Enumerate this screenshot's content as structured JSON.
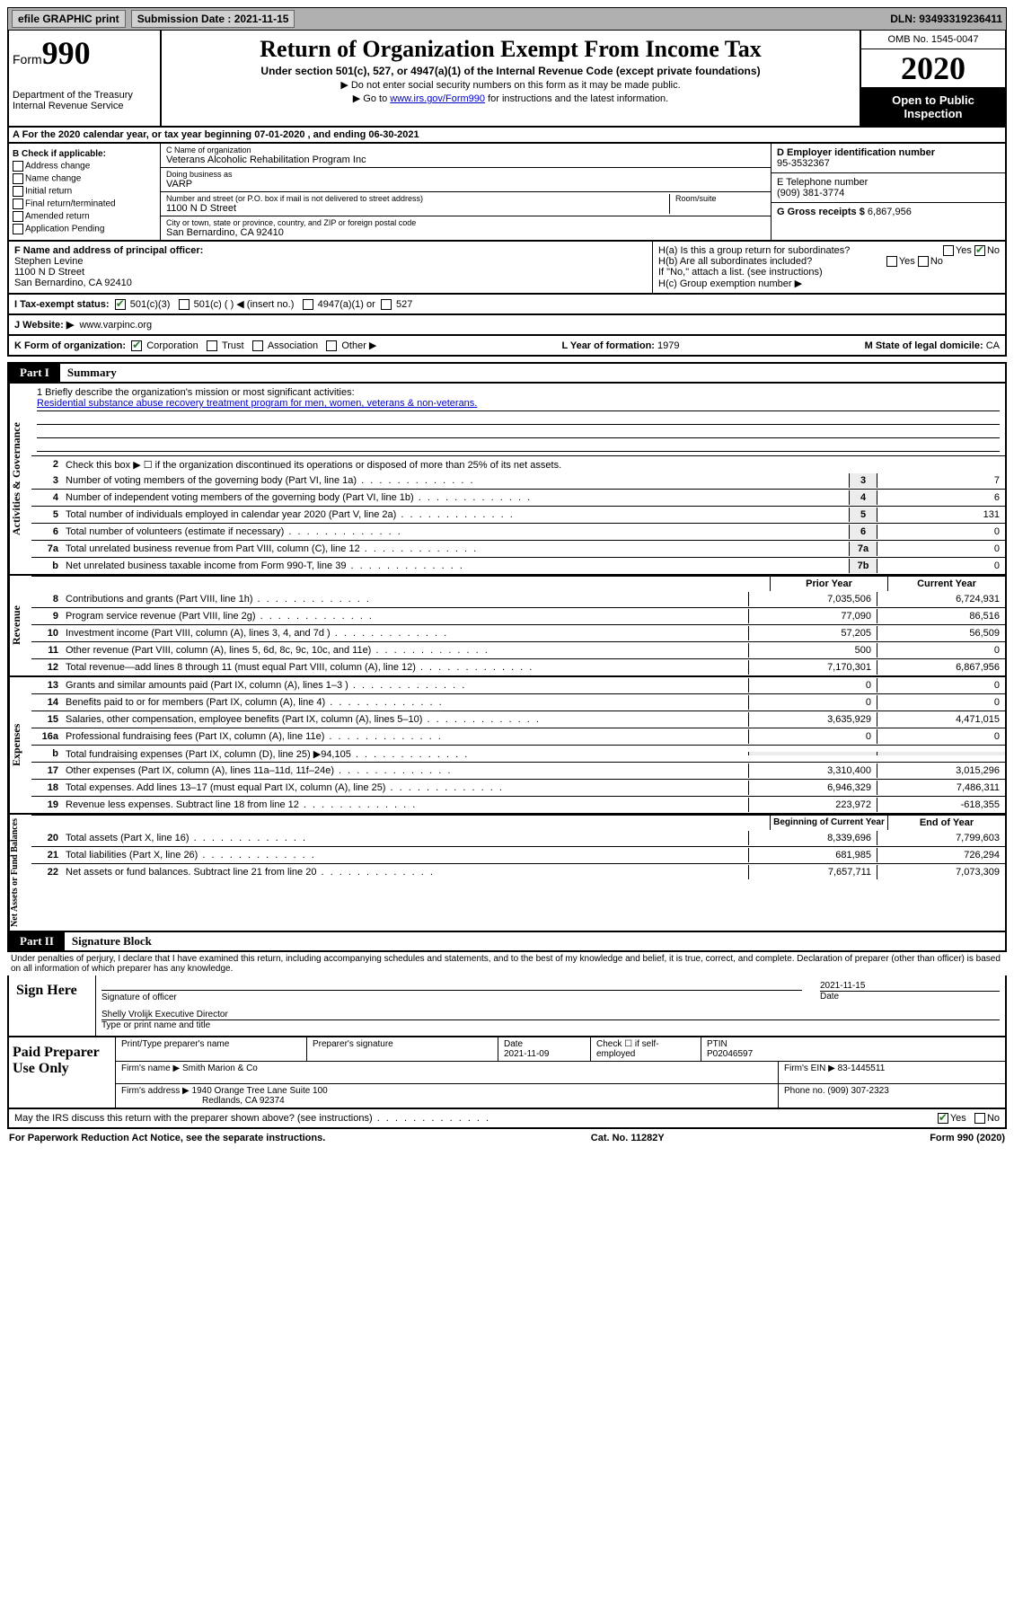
{
  "topbar": {
    "efile": "efile GRAPHIC print",
    "submission_label": "Submission Date :",
    "submission_date": "2021-11-15",
    "dln_label": "DLN:",
    "dln": "93493319236411"
  },
  "header": {
    "form_label": "Form",
    "form_number": "990",
    "dept": "Department of the Treasury\nInternal Revenue Service",
    "title": "Return of Organization Exempt From Income Tax",
    "subtitle": "Under section 501(c), 527, or 4947(a)(1) of the Internal Revenue Code (except private foundations)",
    "note1": "▶ Do not enter social security numbers on this form as it may be made public.",
    "note2_pre": "▶ Go to ",
    "note2_link": "www.irs.gov/Form990",
    "note2_post": " for instructions and the latest information.",
    "omb": "OMB No. 1545-0047",
    "year": "2020",
    "open": "Open to Public Inspection"
  },
  "rowA": "A For the 2020 calendar year, or tax year beginning 07-01-2020   , and ending 06-30-2021",
  "checklist": {
    "title": "B Check if applicable:",
    "items": [
      "Address change",
      "Name change",
      "Initial return",
      "Final return/terminated",
      "Amended return",
      "Application Pending"
    ]
  },
  "entity": {
    "name_label": "C Name of organization",
    "name": "Veterans Alcoholic Rehabilitation Program Inc",
    "dba_label": "Doing business as",
    "dba": "VARP",
    "street_label": "Number and street (or P.O. box if mail is not delivered to street address)",
    "room_label": "Room/suite",
    "street": "1100 N D Street",
    "city_label": "City or town, state or province, country, and ZIP or foreign postal code",
    "city": "San Bernardino, CA  92410",
    "ein_label": "D Employer identification number",
    "ein": "95-3532367",
    "phone_label": "E Telephone number",
    "phone": "(909) 381-3774",
    "gross_label": "G Gross receipts $",
    "gross": "6,867,956"
  },
  "officer": {
    "label": "F  Name and address of principal officer:",
    "name": "Stephen Levine",
    "addr1": "1100 N D Street",
    "addr2": "San Bernardino, CA  92410",
    "ha": "H(a)  Is this a group return for subordinates?",
    "hb": "H(b)  Are all subordinates included?",
    "hb_note": "If \"No,\" attach a list. (see instructions)",
    "hc": "H(c)  Group exemption number ▶",
    "yes": "Yes",
    "no": "No"
  },
  "tax": {
    "label": "I  Tax-exempt status:",
    "c501c3": "501(c)(3)",
    "c501c": "501(c) (  ) ◀ (insert no.)",
    "c4947": "4947(a)(1) or",
    "c527": "527"
  },
  "web": {
    "label": "J  Website: ▶",
    "url": "www.varpinc.org"
  },
  "korg": {
    "k_label": "K Form of organization:",
    "corp": "Corporation",
    "trust": "Trust",
    "assoc": "Association",
    "other": "Other ▶",
    "l_label": "L Year of formation:",
    "l_val": "1979",
    "m_label": "M State of legal domicile:",
    "m_val": "CA"
  },
  "part1": {
    "label": "Part I",
    "title": "Summary"
  },
  "mission": {
    "q": "1  Briefly describe the organization's mission or most significant activities:",
    "text": "Residential substance abuse recovery treatment program for men, women, veterans & non-veterans."
  },
  "summary": {
    "sec1_label": "Activities & Governance",
    "sec2_label": "Revenue",
    "sec3_label": "Expenses",
    "sec4_label": "Net Assets or Fund Balances",
    "line2": "Check this box ▶ ☐  if the organization discontinued its operations or disposed of more than 25% of its net assets.",
    "lines_gov": [
      {
        "n": "3",
        "d": "Number of voting members of the governing body (Part VI, line 1a)",
        "b": "3",
        "v": "7"
      },
      {
        "n": "4",
        "d": "Number of independent voting members of the governing body (Part VI, line 1b)",
        "b": "4",
        "v": "6"
      },
      {
        "n": "5",
        "d": "Total number of individuals employed in calendar year 2020 (Part V, line 2a)",
        "b": "5",
        "v": "131"
      },
      {
        "n": "6",
        "d": "Total number of volunteers (estimate if necessary)",
        "b": "6",
        "v": "0"
      },
      {
        "n": "7a",
        "d": "Total unrelated business revenue from Part VIII, column (C), line 12",
        "b": "7a",
        "v": "0"
      },
      {
        "n": "b",
        "d": "Net unrelated business taxable income from Form 990-T, line 39",
        "b": "7b",
        "v": "0"
      }
    ],
    "col_prior": "Prior Year",
    "col_current": "Current Year",
    "lines_rev": [
      {
        "n": "8",
        "d": "Contributions and grants (Part VIII, line 1h)",
        "p": "7,035,506",
        "c": "6,724,931"
      },
      {
        "n": "9",
        "d": "Program service revenue (Part VIII, line 2g)",
        "p": "77,090",
        "c": "86,516"
      },
      {
        "n": "10",
        "d": "Investment income (Part VIII, column (A), lines 3, 4, and 7d )",
        "p": "57,205",
        "c": "56,509"
      },
      {
        "n": "11",
        "d": "Other revenue (Part VIII, column (A), lines 5, 6d, 8c, 9c, 10c, and 11e)",
        "p": "500",
        "c": "0"
      },
      {
        "n": "12",
        "d": "Total revenue—add lines 8 through 11 (must equal Part VIII, column (A), line 12)",
        "p": "7,170,301",
        "c": "6,867,956"
      }
    ],
    "lines_exp": [
      {
        "n": "13",
        "d": "Grants and similar amounts paid (Part IX, column (A), lines 1–3 )",
        "p": "0",
        "c": "0"
      },
      {
        "n": "14",
        "d": "Benefits paid to or for members (Part IX, column (A), line 4)",
        "p": "0",
        "c": "0"
      },
      {
        "n": "15",
        "d": "Salaries, other compensation, employee benefits (Part IX, column (A), lines 5–10)",
        "p": "3,635,929",
        "c": "4,471,015"
      },
      {
        "n": "16a",
        "d": "Professional fundraising fees (Part IX, column (A), line 11e)",
        "p": "0",
        "c": "0"
      },
      {
        "n": "b",
        "d": "Total fundraising expenses (Part IX, column (D), line 25) ▶94,105",
        "p": "",
        "c": ""
      },
      {
        "n": "17",
        "d": "Other expenses (Part IX, column (A), lines 11a–11d, 11f–24e)",
        "p": "3,310,400",
        "c": "3,015,296"
      },
      {
        "n": "18",
        "d": "Total expenses. Add lines 13–17 (must equal Part IX, column (A), line 25)",
        "p": "6,946,329",
        "c": "7,486,311"
      },
      {
        "n": "19",
        "d": "Revenue less expenses. Subtract line 18 from line 12",
        "p": "223,972",
        "c": "-618,355"
      }
    ],
    "col_begin": "Beginning of Current Year",
    "col_end": "End of Year",
    "lines_net": [
      {
        "n": "20",
        "d": "Total assets (Part X, line 16)",
        "p": "8,339,696",
        "c": "7,799,603"
      },
      {
        "n": "21",
        "d": "Total liabilities (Part X, line 26)",
        "p": "681,985",
        "c": "726,294"
      },
      {
        "n": "22",
        "d": "Net assets or fund balances. Subtract line 21 from line 20",
        "p": "7,657,711",
        "c": "7,073,309"
      }
    ]
  },
  "part2": {
    "label": "Part II",
    "title": "Signature Block"
  },
  "perjury": "Under penalties of perjury, I declare that I have examined this return, including accompanying schedules and statements, and to the best of my knowledge and belief, it is true, correct, and complete. Declaration of preparer (other than officer) is based on all information of which preparer has any knowledge.",
  "sign": {
    "here": "Sign Here",
    "sig_label": "Signature of officer",
    "date_label": "Date",
    "date": "2021-11-15",
    "name": "Shelly Vrolijk  Executive Director",
    "name_label": "Type or print name and title"
  },
  "prep": {
    "label": "Paid Preparer Use Only",
    "h1": "Print/Type preparer's name",
    "h2": "Preparer's signature",
    "h3": "Date",
    "date": "2021-11-09",
    "h4": "Check ☐ if self-employed",
    "h5": "PTIN",
    "ptin": "P02046597",
    "firm_label": "Firm's name    ▶",
    "firm": "Smith Marion & Co",
    "firm_ein_label": "Firm's EIN ▶",
    "firm_ein": "83-1445511",
    "addr_label": "Firm's address ▶",
    "addr1": "1940 Orange Tree Lane Suite 100",
    "addr2": "Redlands, CA  92374",
    "phone_label": "Phone no.",
    "phone": "(909) 307-2323"
  },
  "discuss": {
    "q": "May the IRS discuss this return with the preparer shown above? (see instructions)",
    "yes": "Yes",
    "no": "No"
  },
  "footer": {
    "left": "For Paperwork Reduction Act Notice, see the separate instructions.",
    "mid": "Cat. No. 11282Y",
    "right": "Form 990 (2020)"
  }
}
